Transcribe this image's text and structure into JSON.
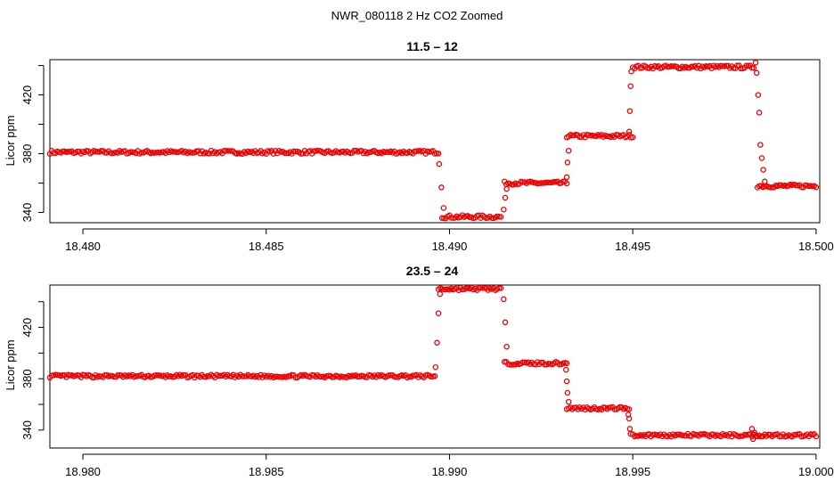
{
  "figure_title": "NWR_080118  2 Hz CO2 Zoomed",
  "colors": {
    "points": "#ee0000",
    "axis": "#000000",
    "background": "#ffffff"
  },
  "chart_data": [
    {
      "type": "scatter",
      "title": "11.5 – 12",
      "xlabel": "",
      "ylabel": "Licor ppm",
      "xlim": [
        18.4791,
        18.5001
      ],
      "ylim": [
        333,
        444
      ],
      "xticks": [
        18.48,
        18.485,
        18.49,
        18.495,
        18.5
      ],
      "xtick_labels": [
        "18.480",
        "18.485",
        "18.490",
        "18.495",
        "18.500"
      ],
      "yticks": [
        340,
        360,
        380,
        400,
        420,
        440
      ],
      "ytick_labels": [
        "340",
        "",
        "380",
        "",
        "420",
        ""
      ],
      "marker": "open-circle",
      "segments": [
        {
          "x_start": 18.4791,
          "x_end": 18.4897,
          "y": 381
        },
        {
          "x_start": 18.4898,
          "x_end": 18.4914,
          "y": 337
        },
        {
          "x_start": 18.4915,
          "x_end": 18.4932,
          "y": 360
        },
        {
          "x_start": 18.4932,
          "x_end": 18.495,
          "y": 392
        },
        {
          "x_start": 18.495,
          "x_end": 18.4983,
          "y": 439
        },
        {
          "x_start": 18.4984,
          "x_end": 18.5,
          "y": 358
        }
      ],
      "transition_points": [
        {
          "x": 18.48972,
          "y": 373
        },
        {
          "x": 18.48978,
          "y": 357
        },
        {
          "x": 18.48984,
          "y": 343
        },
        {
          "x": 18.49148,
          "y": 342
        },
        {
          "x": 18.49152,
          "y": 350
        },
        {
          "x": 18.49156,
          "y": 356
        },
        {
          "x": 18.4932,
          "y": 364
        },
        {
          "x": 18.49322,
          "y": 374
        },
        {
          "x": 18.49325,
          "y": 382
        },
        {
          "x": 18.4949,
          "y": 395
        },
        {
          "x": 18.49492,
          "y": 409
        },
        {
          "x": 18.49494,
          "y": 426
        },
        {
          "x": 18.49496,
          "y": 436
        },
        {
          "x": 18.49835,
          "y": 442
        },
        {
          "x": 18.49838,
          "y": 435
        },
        {
          "x": 18.49842,
          "y": 420
        },
        {
          "x": 18.49845,
          "y": 408
        },
        {
          "x": 18.49848,
          "y": 386
        },
        {
          "x": 18.49852,
          "y": 377
        },
        {
          "x": 18.49856,
          "y": 369
        },
        {
          "x": 18.4986,
          "y": 361
        }
      ]
    },
    {
      "type": "scatter",
      "title": "23.5 – 24",
      "xlabel": "",
      "ylabel": "Licor ppm",
      "xlim": [
        18.9791,
        19.0001
      ],
      "ylim": [
        326,
        453
      ],
      "xticks": [
        18.98,
        18.985,
        18.99,
        18.995,
        19.0
      ],
      "xtick_labels": [
        "18.980",
        "18.985",
        "18.990",
        "18.995",
        "19.000"
      ],
      "yticks": [
        340,
        360,
        380,
        400,
        420,
        440
      ],
      "ytick_labels": [
        "340",
        "",
        "380",
        "",
        "420",
        ""
      ],
      "marker": "open-circle",
      "segments": [
        {
          "x_start": 18.9791,
          "x_end": 18.9896,
          "y": 382
        },
        {
          "x_start": 18.9897,
          "x_end": 18.9914,
          "y": 450
        },
        {
          "x_start": 18.9915,
          "x_end": 18.9932,
          "y": 392
        },
        {
          "x_start": 18.9932,
          "x_end": 18.9949,
          "y": 357
        },
        {
          "x_start": 18.995,
          "x_end": 18.9983,
          "y": 336
        },
        {
          "x_start": 18.9983,
          "x_end": 19.0,
          "y": 336
        }
      ],
      "transition_points": [
        {
          "x": 18.98962,
          "y": 389
        },
        {
          "x": 18.98966,
          "y": 408
        },
        {
          "x": 18.9897,
          "y": 431
        },
        {
          "x": 18.98974,
          "y": 446
        },
        {
          "x": 18.99148,
          "y": 442
        },
        {
          "x": 18.99152,
          "y": 424
        },
        {
          "x": 18.99156,
          "y": 405
        },
        {
          "x": 18.99318,
          "y": 387
        },
        {
          "x": 18.9932,
          "y": 378
        },
        {
          "x": 18.99322,
          "y": 369
        },
        {
          "x": 18.99325,
          "y": 362
        },
        {
          "x": 18.99488,
          "y": 352
        },
        {
          "x": 18.9949,
          "y": 349
        },
        {
          "x": 18.99492,
          "y": 341
        },
        {
          "x": 18.99494,
          "y": 337
        },
        {
          "x": 18.99825,
          "y": 341
        },
        {
          "x": 18.99828,
          "y": 333
        },
        {
          "x": 18.99832,
          "y": 338
        }
      ]
    }
  ]
}
